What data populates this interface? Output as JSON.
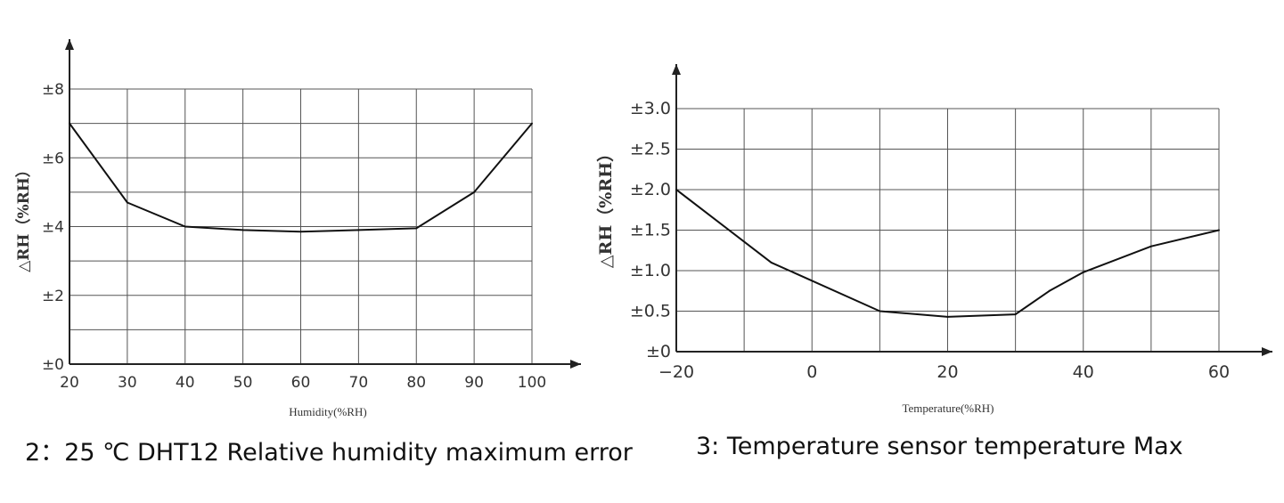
{
  "chart_data": [
    {
      "type": "line",
      "x": [
        20,
        30,
        40,
        50,
        60,
        70,
        80,
        90,
        100
      ],
      "series": [
        {
          "values": [
            7.0,
            4.7,
            4.0,
            3.9,
            3.85,
            3.9,
            3.95,
            5.0,
            7.0
          ]
        }
      ],
      "x_ticks": [
        "20",
        "30",
        "40",
        "50",
        "60",
        "70",
        "80",
        "90",
        "100"
      ],
      "y_ticks": [
        "±0",
        "±2",
        "±4",
        "±6",
        "±8"
      ],
      "xlabel": "Humidity(%RH)",
      "ylabel": "△RH（%RH）",
      "xlim": [
        20,
        100
      ],
      "ylim": [
        0,
        8
      ],
      "grid": true,
      "caption": "2：25 ℃  DHT12 Relative humidity maximum error"
    },
    {
      "type": "line",
      "x": [
        -20,
        -6,
        10,
        20,
        30,
        35,
        40,
        50,
        60
      ],
      "series": [
        {
          "values": [
            2.0,
            1.1,
            0.5,
            0.43,
            0.46,
            0.75,
            0.98,
            1.3,
            1.5
          ]
        }
      ],
      "x_ticks": [
        "−20",
        "0",
        "20",
        "40",
        "60"
      ],
      "y_ticks": [
        "±0",
        "±0.5",
        "±1.0",
        "±1.5",
        "±2.0",
        "±2.5",
        "±3.0"
      ],
      "xlabel": "Temperature(%RH)",
      "ylabel": "△RH（%RH）",
      "xlim": [
        -20,
        60
      ],
      "ylim": [
        0,
        3
      ],
      "grid": true,
      "caption": "3: Temperature sensor temperature Max"
    }
  ]
}
